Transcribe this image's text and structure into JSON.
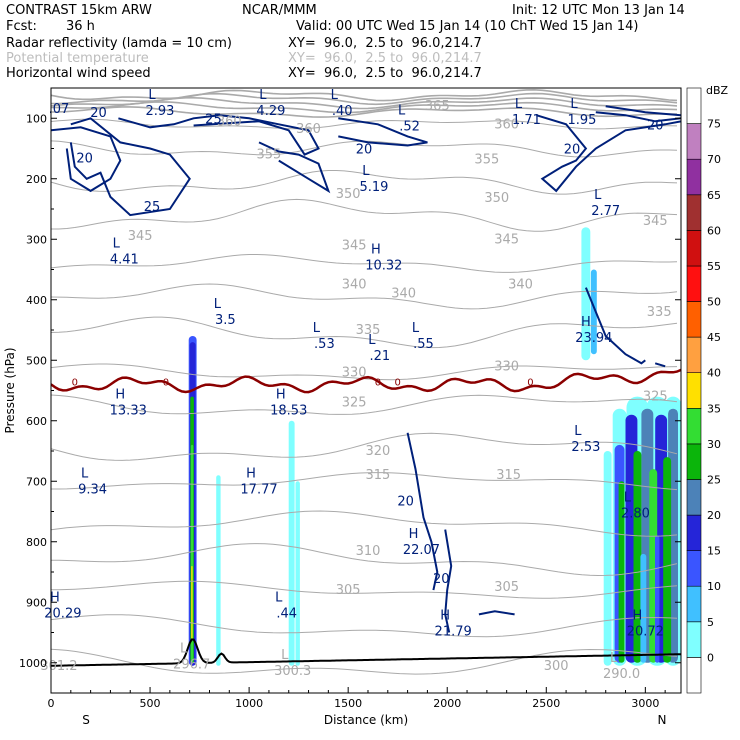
{
  "header": {
    "model": "CONTRAST 15km ARW",
    "org": "NCAR/MMM",
    "init": "Init: 12 UTC Mon 13 Jan 14",
    "fcst_label": "Fcst:",
    "fcst_value": "36 h",
    "valid": "Valid: 00 UTC Wed 15 Jan 14 (10 ChT Wed 15 Jan 14)",
    "field1_name": "Radar reflectivity (lamda = 10 cm)",
    "field1_xy": "XY=  96.0,  2.5 to  96.0,214.7",
    "field2_name": "Potential temperature",
    "field2_xy": "XY=  96.0,  2.5 to  96.0,214.7",
    "field3_name": "Horizontal wind speed",
    "field3_xy": "XY=  96.0,  2.5 to  96.0,214.7"
  },
  "colors": {
    "wind_contour": "#00207a",
    "theta_contour": "#aaaaaa",
    "freezing_line": "#8b0000",
    "terrain": "#000000"
  },
  "chart_data": {
    "type": "cross-section",
    "title": "Radar reflectivity, Potential temperature, Horizontal wind speed",
    "xlabel": "Distance (km)",
    "ylabel": "Pressure (hPa)",
    "xlim": [
      0,
      3180
    ],
    "ylim": [
      1050,
      50
    ],
    "x_ticks": [
      0,
      500,
      1000,
      1500,
      2000,
      2500,
      3000
    ],
    "y_ticks": [
      100,
      200,
      300,
      400,
      500,
      600,
      700,
      800,
      900,
      1000
    ],
    "x_end_labels": {
      "left": "S",
      "right": "N"
    },
    "colorbar": {
      "unit": "dBZ",
      "levels": [
        0,
        5,
        10,
        15,
        20,
        25,
        30,
        35,
        40,
        45,
        50,
        55,
        60,
        65,
        70,
        75
      ],
      "colors": [
        "#ffffff",
        "#7fffff",
        "#40c0ff",
        "#3a55ff",
        "#2525d8",
        "#4c82b8",
        "#0bb50b",
        "#33dd33",
        "#ffe000",
        "#ffa040",
        "#ff6000",
        "#ff1010",
        "#d01010",
        "#a03030",
        "#9030a0",
        "#c080c0",
        "#ffffff"
      ]
    },
    "theta_levels": [
      {
        "label": "365",
        "x": 1950,
        "p": 80
      },
      {
        "label": "360",
        "x": 900,
        "p": 105
      },
      {
        "label": "360",
        "x": 1300,
        "p": 118
      },
      {
        "label": "360",
        "x": 2300,
        "p": 110
      },
      {
        "label": "355",
        "x": 1100,
        "p": 160
      },
      {
        "label": "355",
        "x": 2200,
        "p": 168
      },
      {
        "label": "350",
        "x": 1500,
        "p": 225
      },
      {
        "label": "350",
        "x": 2250,
        "p": 232
      },
      {
        "label": "345",
        "x": 450,
        "p": 295
      },
      {
        "label": "345",
        "x": 1530,
        "p": 310
      },
      {
        "label": "345",
        "x": 2300,
        "p": 300
      },
      {
        "label": "345",
        "x": 3050,
        "p": 270
      },
      {
        "label": "340",
        "x": 1530,
        "p": 375
      },
      {
        "label": "340",
        "x": 1780,
        "p": 390
      },
      {
        "label": "340",
        "x": 2370,
        "p": 375
      },
      {
        "label": "335",
        "x": 1600,
        "p": 450
      },
      {
        "label": "335",
        "x": 3070,
        "p": 420
      },
      {
        "label": "330",
        "x": 1530,
        "p": 520
      },
      {
        "label": "330",
        "x": 2300,
        "p": 510
      },
      {
        "label": "325",
        "x": 1530,
        "p": 570
      },
      {
        "label": "325",
        "x": 3050,
        "p": 560
      },
      {
        "label": "320",
        "x": 1650,
        "p": 650
      },
      {
        "label": "315",
        "x": 1650,
        "p": 690
      },
      {
        "label": "315",
        "x": 2310,
        "p": 690
      },
      {
        "label": "310",
        "x": 1600,
        "p": 815
      },
      {
        "label": "305",
        "x": 1500,
        "p": 880
      },
      {
        "label": "305",
        "x": 2300,
        "p": 875
      },
      {
        "label": "300",
        "x": 2550,
        "p": 1005
      }
    ],
    "wind_labels": [
      {
        "label": "20",
        "x": 240,
        "p": 90
      },
      {
        "label": "25",
        "x": 820,
        "p": 100
      },
      {
        "label": "20",
        "x": 170,
        "p": 165
      },
      {
        "label": "25",
        "x": 510,
        "p": 245
      },
      {
        "label": "20",
        "x": 1580,
        "p": 150
      },
      {
        "label": "20",
        "x": 2630,
        "p": 150
      },
      {
        "label": "20",
        "x": 3050,
        "p": 110
      },
      {
        "label": "20",
        "x": 1790,
        "p": 732
      },
      {
        "label": "20",
        "x": 1970,
        "p": 860
      }
    ],
    "extrema": [
      {
        "type": "L",
        "value": "2.93",
        "x": 550,
        "p": 75
      },
      {
        "type": "L",
        "value": "4.29",
        "x": 1110,
        "p": 75
      },
      {
        "type": "L",
        "value": ".40",
        "x": 1470,
        "p": 75
      },
      {
        "type": "L",
        "value": ".52",
        "x": 1810,
        "p": 100
      },
      {
        "type": "L",
        "value": "1.71",
        "x": 2400,
        "p": 90
      },
      {
        "type": "L",
        "value": "1.95",
        "x": 2680,
        "p": 90
      },
      {
        "type": "L",
        "value": "5.19",
        "x": 1630,
        "p": 200
      },
      {
        "type": "L",
        "value": "2.77",
        "x": 2800,
        "p": 240
      },
      {
        "type": "L",
        "value": "4.41",
        "x": 370,
        "p": 320
      },
      {
        "type": "H",
        "value": "10.32",
        "x": 1680,
        "p": 330
      },
      {
        "type": "L",
        "value": "3.5",
        "x": 880,
        "p": 420
      },
      {
        "type": "L",
        "value": ".53",
        "x": 1380,
        "p": 460
      },
      {
        "type": "L",
        "value": ".55",
        "x": 1880,
        "p": 460
      },
      {
        "type": "L",
        "value": ".21",
        "x": 1660,
        "p": 480
      },
      {
        "type": "H",
        "value": "23.94",
        "x": 2740,
        "p": 450
      },
      {
        "type": "H",
        "value": "13.33",
        "x": 390,
        "p": 570
      },
      {
        "type": "H",
        "value": "18.53",
        "x": 1200,
        "p": 570
      },
      {
        "type": "L",
        "value": "2.53",
        "x": 2700,
        "p": 630
      },
      {
        "type": "L",
        "value": "9.34",
        "x": 210,
        "p": 700
      },
      {
        "type": "H",
        "value": "17.77",
        "x": 1050,
        "p": 700
      },
      {
        "type": "L",
        "value": "2.80",
        "x": 2950,
        "p": 740
      },
      {
        "type": "H",
        "value": "22.07",
        "x": 1870,
        "p": 800
      },
      {
        "type": "H",
        "value": "20.29",
        "x": 60,
        "p": 905
      },
      {
        "type": "L",
        "value": ".44",
        "x": 1190,
        "p": 905
      },
      {
        "type": "H",
        "value": "20.72",
        "x": 3000,
        "p": 935
      },
      {
        "type": "H",
        "value": "21.79",
        "x": 2030,
        "p": 935
      },
      {
        "type": "L",
        "value": "296.7",
        "x": 710,
        "p": 990
      },
      {
        "type": "L",
        "value": "300.3",
        "x": 1220,
        "p": 1000
      },
      {
        "type": "L",
        "value": "290.0",
        "x": 2880,
        "p": 1005
      }
    ],
    "corner_labels": [
      {
        "text": ".07",
        "x": 40,
        "p": 85
      },
      {
        "text": "301.2",
        "x": 40,
        "p": 1005
      }
    ],
    "freezing_level_label": "0"
  }
}
